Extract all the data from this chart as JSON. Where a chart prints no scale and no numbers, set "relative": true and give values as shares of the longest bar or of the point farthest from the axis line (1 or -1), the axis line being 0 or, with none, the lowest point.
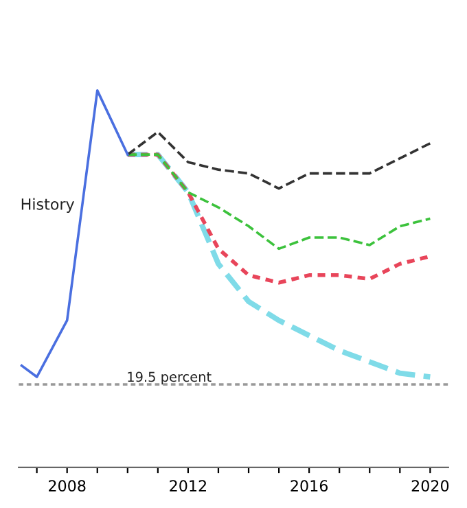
{
  "chart_data": {
    "type": "line",
    "relative": true,
    "x": [
      2010,
      2011,
      2012,
      2013,
      2014,
      2015,
      2016,
      2017,
      2018,
      2019,
      2020
    ],
    "series": [
      {
        "name": "History",
        "color": "#4a6fe0",
        "line_style": "solid",
        "x": [
          2006.5,
          2007,
          2008,
          2009,
          2010
        ],
        "values": [
          0.27,
          0.24,
          0.39,
          1.0,
          0.83
        ]
      },
      {
        "color": "#333333",
        "line_style": "dashed",
        "values": [
          0.83,
          0.89,
          0.81,
          0.79,
          0.78,
          0.74,
          0.78,
          0.78,
          0.78,
          0.82,
          0.86
        ]
      },
      {
        "color": "#3cc23c",
        "line_style": "dashed",
        "values": [
          0.83,
          0.83,
          0.73,
          0.69,
          0.64,
          0.58,
          0.61,
          0.61,
          0.59,
          0.64,
          0.66
        ]
      },
      {
        "color": "#e8455a",
        "line_style": "dotted",
        "values": [
          0.83,
          0.83,
          0.73,
          0.58,
          0.51,
          0.49,
          0.51,
          0.51,
          0.5,
          0.54,
          0.56
        ]
      },
      {
        "color": "#7fdbe8",
        "line_style": "dashed",
        "values": [
          0.83,
          0.83,
          0.73,
          0.54,
          0.44,
          0.39,
          0.35,
          0.31,
          0.28,
          0.25,
          0.24
        ]
      }
    ],
    "ref_lines": [
      {
        "axis": "y",
        "value": 0.22,
        "label": "19.5 percent",
        "color": "#999999",
        "line_style": "dotted"
      }
    ],
    "xlim": [
      2006.4,
      2020.6
    ],
    "xticks": [
      {
        "value": 2007,
        "label": null
      },
      2008,
      {
        "value": 2009,
        "label": null
      },
      {
        "value": 2010,
        "label": null
      },
      {
        "value": 2011,
        "label": null
      },
      2012,
      {
        "value": 2013,
        "label": null
      },
      {
        "value": 2014,
        "label": null
      },
      {
        "value": 2015,
        "label": null
      },
      2016,
      {
        "value": 2017,
        "label": null
      },
      {
        "value": 2018,
        "label": null
      },
      {
        "value": 2019,
        "label": null
      },
      2020
    ],
    "tick_labels": "x",
    "grid": false,
    "legend": false
  }
}
